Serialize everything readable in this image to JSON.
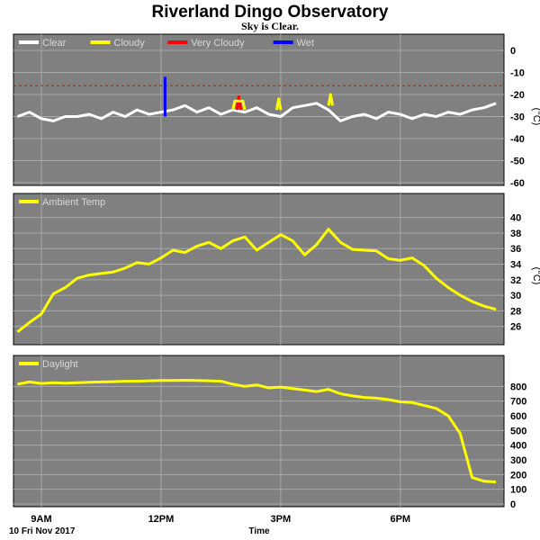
{
  "title": "Riverland Dingo Observatory",
  "subtitle": "Sky is Clear.",
  "footer": {
    "date_label": "10 Fri Nov 2017",
    "time_label": "Time"
  },
  "colors": {
    "panel_bg": "#808080",
    "grid": "#a8a8a8",
    "clear": "#ffffff",
    "cloudy": "#ffff00",
    "very_cloudy": "#ff0000",
    "wet": "#0000ff",
    "threshold": "#ff0000"
  },
  "chart_data": [
    {
      "type": "line",
      "ylim": [
        -60,
        0
      ],
      "yticks": [
        0,
        -10,
        -20,
        -30,
        -40,
        -50,
        -60
      ],
      "unit": "(°C)",
      "threshold": -16,
      "legend": [
        {
          "name": "Clear",
          "color": "#ffffff"
        },
        {
          "name": "Cloudy",
          "color": "#ffff00"
        },
        {
          "name": "Very Cloudy",
          "color": "#ff0000"
        },
        {
          "name": "Wet",
          "color": "#0000ff"
        }
      ],
      "series": [
        {
          "name": "Clear",
          "x": [
            8.4,
            8.7,
            9.0,
            9.3,
            9.6,
            9.9,
            10.2,
            10.5,
            10.8,
            11.1,
            11.4,
            11.7,
            12.0,
            12.3,
            12.6,
            12.9,
            13.2,
            13.5,
            13.8,
            14.1,
            14.4,
            14.7,
            15.0,
            15.3,
            15.6,
            15.9,
            16.2,
            16.5,
            16.8,
            17.1,
            17.4,
            17.7,
            18.0,
            18.3,
            18.6,
            18.9,
            19.2,
            19.5,
            19.8,
            20.1,
            20.4
          ],
          "y": [
            -30,
            -28,
            -31,
            -32,
            -30,
            -30,
            -29,
            -31,
            -28,
            -30,
            -27,
            -29,
            -28,
            -27,
            -25,
            -28,
            -26,
            -29,
            -27,
            -28,
            -26,
            -29,
            -30,
            -26,
            -25,
            -24,
            -27,
            -32,
            -30,
            -29,
            -31,
            -28,
            -29,
            -31,
            -29,
            -30,
            -28,
            -29,
            -27,
            -26,
            -24
          ]
        },
        {
          "name": "Wet",
          "x": [
            12.1,
            12.1
          ],
          "y": [
            -30,
            -12
          ]
        },
        {
          "name": "Very Cloudy",
          "x": [
            13.9,
            13.95,
            14.0
          ],
          "y": [
            -27,
            -21,
            -27
          ]
        },
        {
          "name": "Cloudy",
          "x": [
            13.8,
            13.85,
            14.05,
            14.1
          ],
          "y": [
            -27,
            -23,
            -23,
            -27
          ]
        },
        {
          "name": "Cloudy",
          "x": [
            14.9,
            14.95,
            15.0
          ],
          "y": [
            -27,
            -22,
            -27
          ]
        },
        {
          "name": "Cloudy",
          "x": [
            16.2,
            16.25,
            16.3
          ],
          "y": [
            -25,
            -20,
            -25
          ]
        }
      ]
    },
    {
      "type": "line",
      "ylim": [
        24,
        41
      ],
      "yticks": [
        26,
        28,
        30,
        32,
        34,
        36,
        38,
        40
      ],
      "unit": "(°C)",
      "legend": [
        {
          "name": "Ambient Temp",
          "color": "#ffff00"
        }
      ],
      "series": [
        {
          "name": "Ambient Temp",
          "x": [
            8.4,
            8.7,
            9.0,
            9.3,
            9.6,
            9.9,
            10.2,
            10.5,
            10.8,
            11.1,
            11.4,
            11.7,
            12.0,
            12.3,
            12.6,
            12.9,
            13.2,
            13.5,
            13.8,
            14.1,
            14.4,
            14.7,
            15.0,
            15.3,
            15.6,
            15.9,
            16.2,
            16.5,
            16.8,
            17.1,
            17.4,
            17.7,
            18.0,
            18.3,
            18.6,
            18.9,
            19.2,
            19.5,
            19.8,
            20.1,
            20.4
          ],
          "y": [
            25.3,
            26.5,
            27.6,
            30.2,
            31.0,
            32.2,
            32.6,
            32.8,
            33.0,
            33.5,
            34.2,
            34.0,
            34.8,
            35.8,
            35.5,
            36.3,
            36.8,
            36.0,
            37.0,
            37.5,
            35.8,
            36.8,
            37.8,
            37.0,
            35.2,
            36.5,
            38.5,
            36.8,
            35.9,
            35.8,
            35.7,
            34.7,
            34.5,
            34.8,
            33.8,
            32.2,
            31.0,
            30.0,
            29.2,
            28.6,
            28.2
          ]
        }
      ]
    },
    {
      "type": "line",
      "ylim": [
        0,
        900
      ],
      "yticks": [
        0,
        100,
        200,
        300,
        400,
        500,
        600,
        700,
        800
      ],
      "legend": [
        {
          "name": "Daylight",
          "color": "#ffff00"
        }
      ],
      "series": [
        {
          "name": "Daylight",
          "x": [
            8.4,
            8.7,
            9.0,
            9.3,
            9.6,
            9.9,
            10.2,
            10.5,
            10.8,
            11.1,
            11.4,
            11.7,
            12.0,
            12.3,
            12.6,
            12.9,
            13.2,
            13.5,
            13.8,
            14.1,
            14.4,
            14.7,
            15.0,
            15.3,
            15.6,
            15.9,
            16.2,
            16.5,
            16.8,
            17.1,
            17.4,
            17.7,
            18.0,
            18.3,
            18.6,
            18.9,
            19.2,
            19.5,
            19.8,
            20.1,
            20.4
          ],
          "y": [
            815,
            830,
            820,
            825,
            822,
            825,
            828,
            830,
            832,
            835,
            835,
            838,
            840,
            840,
            842,
            840,
            838,
            835,
            815,
            800,
            810,
            790,
            795,
            785,
            775,
            765,
            780,
            750,
            735,
            725,
            720,
            710,
            695,
            690,
            670,
            650,
            600,
            480,
            180,
            155,
            150
          ]
        }
      ]
    }
  ],
  "xaxis": {
    "range": [
      8.3,
      20.6
    ],
    "ticks": [
      {
        "x": 9,
        "label": "9AM"
      },
      {
        "x": 12,
        "label": "12PM"
      },
      {
        "x": 15,
        "label": "3PM"
      },
      {
        "x": 18,
        "label": "6PM"
      }
    ]
  }
}
